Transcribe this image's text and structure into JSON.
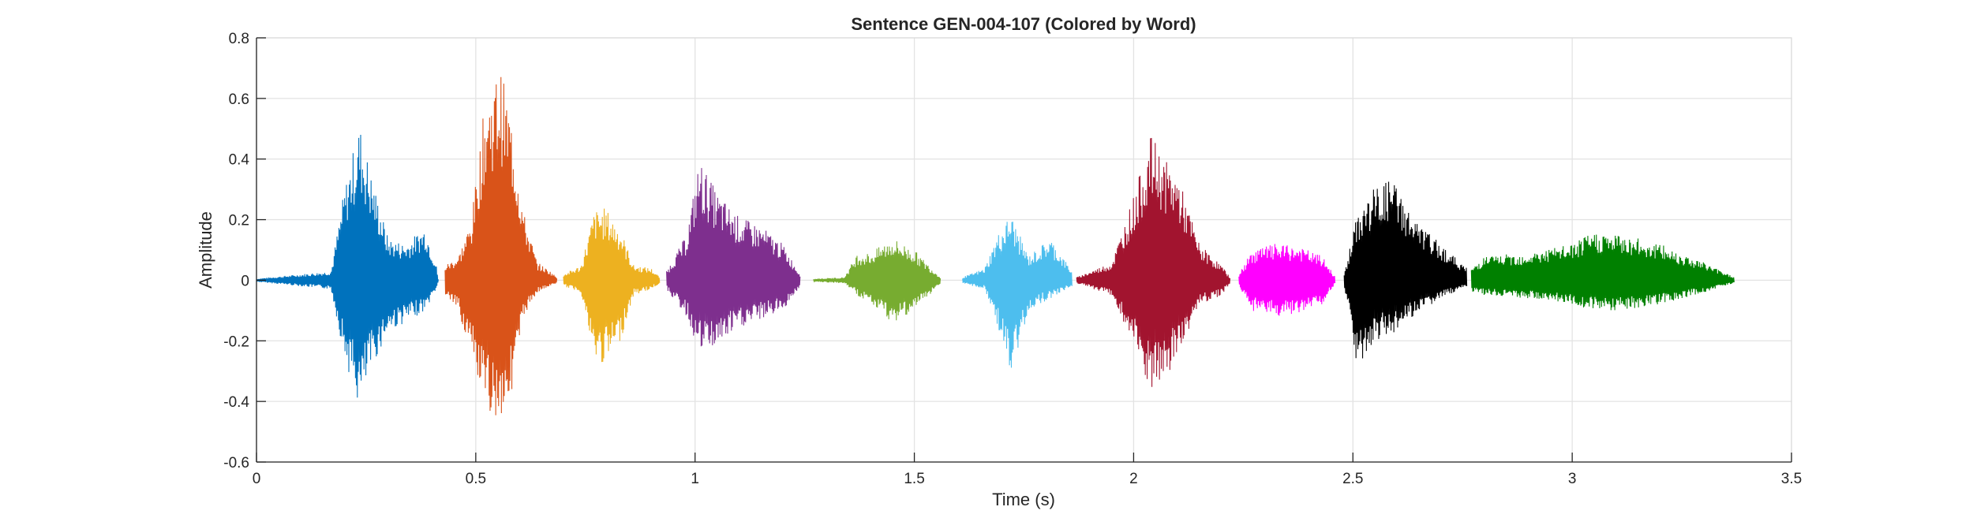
{
  "chart_data": {
    "type": "line",
    "title": "Sentence GEN-004-107 (Colored by Word)",
    "xlabel": "Time (s)",
    "ylabel": "Amplitude",
    "xlim": [
      0,
      3.5
    ],
    "ylim": [
      -0.6,
      0.8
    ],
    "x_ticks": [
      0,
      0.5,
      1,
      1.5,
      2,
      2.5,
      3,
      3.5
    ],
    "x_tick_labels": [
      "0",
      "0.5",
      "1",
      "1.5",
      "2",
      "2.5",
      "3",
      "3.5"
    ],
    "y_ticks": [
      -0.6,
      -0.4,
      -0.2,
      0,
      0.2,
      0.4,
      0.6,
      0.8
    ],
    "y_tick_labels": [
      "-0.6",
      "-0.4",
      "-0.2",
      "0",
      "0.2",
      "0.4",
      "0.6",
      "0.8"
    ],
    "grid": true,
    "legend": "none",
    "series": [
      {
        "color": "#0072bd",
        "x": [
          0.0,
          0.17,
          0.2,
          0.235,
          0.26,
          0.3,
          0.34,
          0.385,
          0.41,
          0.415
        ],
        "y_max": [
          0.005,
          0.03,
          0.3,
          0.52,
          0.36,
          0.14,
          0.12,
          0.18,
          0.05,
          0.0
        ],
        "y_min": [
          -0.005,
          -0.03,
          -0.25,
          -0.43,
          -0.3,
          -0.17,
          -0.14,
          -0.1,
          -0.03,
          0.0
        ]
      },
      {
        "color": "#d95319",
        "x": [
          0.43,
          0.46,
          0.49,
          0.52,
          0.555,
          0.58,
          0.61,
          0.64,
          0.67,
          0.685
        ],
        "y_max": [
          0.05,
          0.08,
          0.2,
          0.58,
          0.71,
          0.55,
          0.22,
          0.06,
          0.03,
          0.01
        ],
        "y_min": [
          -0.05,
          -0.1,
          -0.25,
          -0.43,
          -0.46,
          -0.38,
          -0.12,
          -0.04,
          -0.02,
          -0.01
        ]
      },
      {
        "color": "#edb120",
        "x": [
          0.7,
          0.74,
          0.77,
          0.795,
          0.83,
          0.86,
          0.9,
          0.92
        ],
        "y_max": [
          0.02,
          0.05,
          0.23,
          0.24,
          0.17,
          0.05,
          0.04,
          0.01
        ],
        "y_min": [
          -0.02,
          -0.04,
          -0.27,
          -0.28,
          -0.2,
          -0.05,
          -0.03,
          -0.01
        ]
      },
      {
        "color": "#7e2f8e",
        "x": [
          0.935,
          0.98,
          1.01,
          1.05,
          1.1,
          1.15,
          1.2,
          1.24
        ],
        "y_max": [
          0.03,
          0.15,
          0.4,
          0.29,
          0.21,
          0.18,
          0.12,
          0.02
        ],
        "y_min": [
          -0.03,
          -0.12,
          -0.24,
          -0.22,
          -0.16,
          -0.13,
          -0.1,
          -0.02
        ]
      },
      {
        "color": "#77ac30",
        "x": [
          1.27,
          1.34,
          1.37,
          1.4,
          1.45,
          1.5,
          1.56
        ],
        "y_max": [
          0.005,
          0.01,
          0.09,
          0.09,
          0.14,
          0.1,
          0.01
        ],
        "y_min": [
          -0.005,
          -0.01,
          -0.05,
          -0.08,
          -0.14,
          -0.1,
          -0.01
        ]
      },
      {
        "color": "#4dbeee",
        "x": [
          1.61,
          1.66,
          1.69,
          1.72,
          1.76,
          1.81,
          1.86
        ],
        "y_max": [
          0.01,
          0.04,
          0.15,
          0.22,
          0.08,
          0.14,
          0.03
        ],
        "y_min": [
          -0.01,
          -0.03,
          -0.15,
          -0.33,
          -0.1,
          -0.06,
          -0.02
        ]
      },
      {
        "color": "#a2142f",
        "x": [
          1.87,
          1.95,
          2.0,
          2.04,
          2.07,
          2.1,
          2.15,
          2.2,
          2.22
        ],
        "y_max": [
          0.01,
          0.06,
          0.28,
          0.48,
          0.4,
          0.35,
          0.12,
          0.05,
          0.01
        ],
        "y_min": [
          -0.01,
          -0.05,
          -0.22,
          -0.38,
          -0.35,
          -0.25,
          -0.08,
          -0.05,
          -0.01
        ]
      },
      {
        "color": "#ff00ff",
        "x": [
          2.24,
          2.27,
          2.32,
          2.38,
          2.43,
          2.46
        ],
        "y_max": [
          0.02,
          0.1,
          0.12,
          0.11,
          0.08,
          0.01
        ],
        "y_min": [
          -0.02,
          -0.1,
          -0.12,
          -0.11,
          -0.08,
          -0.01
        ]
      },
      {
        "color": "#000000",
        "x": [
          2.48,
          2.51,
          2.55,
          2.59,
          2.64,
          2.7,
          2.76
        ],
        "y_max": [
          0.02,
          0.22,
          0.31,
          0.34,
          0.2,
          0.12,
          0.04
        ],
        "y_min": [
          -0.02,
          -0.29,
          -0.2,
          -0.18,
          -0.12,
          -0.06,
          -0.02
        ]
      },
      {
        "color": "#008000",
        "x": [
          2.77,
          2.8,
          2.9,
          3.0,
          3.05,
          3.12,
          3.2,
          3.3,
          3.37
        ],
        "y_max": [
          0.04,
          0.08,
          0.09,
          0.12,
          0.16,
          0.15,
          0.12,
          0.06,
          0.01
        ],
        "y_min": [
          -0.04,
          -0.05,
          -0.06,
          -0.08,
          -0.1,
          -0.1,
          -0.08,
          -0.04,
          -0.01
        ]
      }
    ]
  }
}
